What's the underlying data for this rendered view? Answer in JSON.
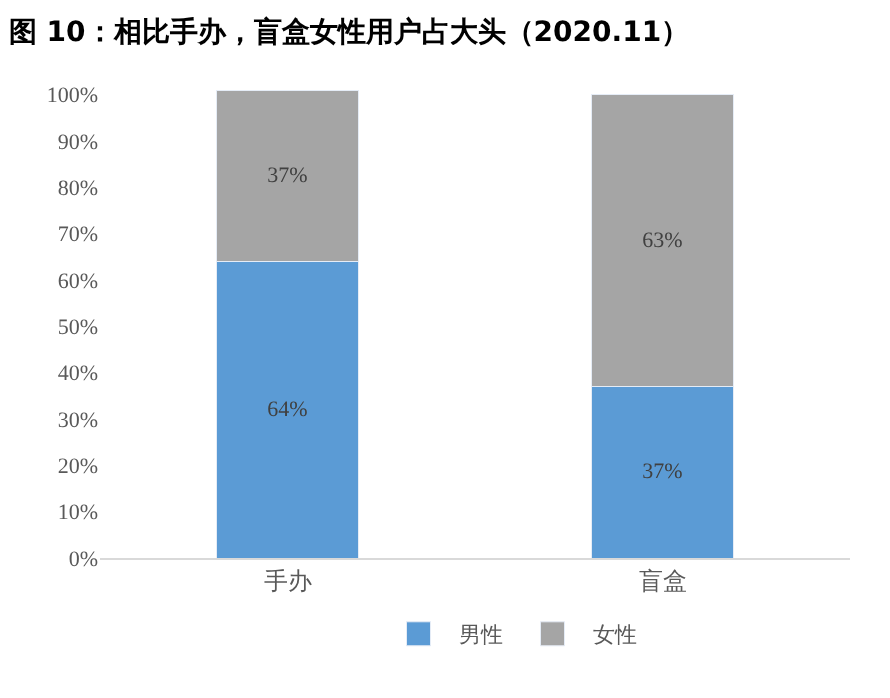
{
  "chart_data": {
    "type": "bar",
    "title": "图 10：相比手办，盲盒女性用户占大头（2020.11）",
    "categories": [
      "手办",
      "盲盒"
    ],
    "stacked": true,
    "series": [
      {
        "name": "男性",
        "color": "#5b9bd5",
        "values": [
          64,
          37
        ],
        "value_labels": [
          "64%",
          "37%"
        ]
      },
      {
        "name": "女性",
        "color": "#a5a5a5",
        "values": [
          37,
          63
        ],
        "value_labels": [
          "37%",
          "63%"
        ]
      }
    ],
    "ylim": [
      0,
      101
    ],
    "yticks": [
      {
        "value": 0,
        "label": "0%"
      },
      {
        "value": 10,
        "label": "10%"
      },
      {
        "value": 20,
        "label": "20%"
      },
      {
        "value": 30,
        "label": "30%"
      },
      {
        "value": 40,
        "label": "40%"
      },
      {
        "value": 50,
        "label": "50%"
      },
      {
        "value": 60,
        "label": "60%"
      },
      {
        "value": 70,
        "label": "70%"
      },
      {
        "value": 80,
        "label": "80%"
      },
      {
        "value": 90,
        "label": "90%"
      },
      {
        "value": 100,
        "label": "100%"
      }
    ],
    "legend": "bottom"
  }
}
